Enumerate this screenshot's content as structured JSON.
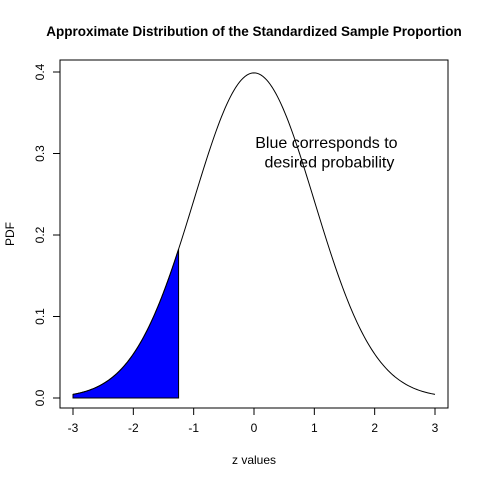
{
  "chart_data": {
    "type": "area",
    "title": "Approximate Distribution of the Standardized Sample Proportion",
    "xlabel": "z values",
    "ylabel": "PDF",
    "xlim": [
      -3,
      3
    ],
    "ylim": [
      0,
      0.4
    ],
    "x_ticks": [
      "-3",
      "-2",
      "-1",
      "0",
      "1",
      "2",
      "3"
    ],
    "y_ticks": [
      "0.0",
      "0.1",
      "0.2",
      "0.3",
      "0.4"
    ],
    "grid": false,
    "series": [
      {
        "kind": "line",
        "x": [
          -3.0,
          -2.75,
          -2.5,
          -2.25,
          -2.0,
          -1.75,
          -1.5,
          -1.25,
          -1.0,
          -0.75,
          -0.5,
          -0.25,
          0.0,
          0.25,
          0.5,
          0.75,
          1.0,
          1.25,
          1.5,
          1.75,
          2.0,
          2.25,
          2.5,
          2.75,
          3.0
        ],
        "y": [
          0.004,
          0.009,
          0.018,
          0.032,
          0.054,
          0.086,
          0.13,
          0.183,
          0.242,
          0.301,
          0.352,
          0.387,
          0.399,
          0.387,
          0.352,
          0.301,
          0.242,
          0.183,
          0.13,
          0.086,
          0.054,
          0.032,
          0.018,
          0.009,
          0.004
        ],
        "color": "#000000"
      },
      {
        "kind": "shaded",
        "x": [
          -3.0,
          -2.75,
          -2.5,
          -2.25,
          -2.0,
          -1.75,
          -1.5,
          -1.25
        ],
        "y": [
          0.004,
          0.009,
          0.018,
          0.032,
          0.054,
          0.086,
          0.13,
          0.183
        ],
        "color": "#0000ff"
      }
    ],
    "annotations": [
      {
        "text": "Blue corresponds to",
        "x": 1.2,
        "y": 0.307
      },
      {
        "text": "desired probability",
        "x": 1.25,
        "y": 0.283
      }
    ]
  }
}
